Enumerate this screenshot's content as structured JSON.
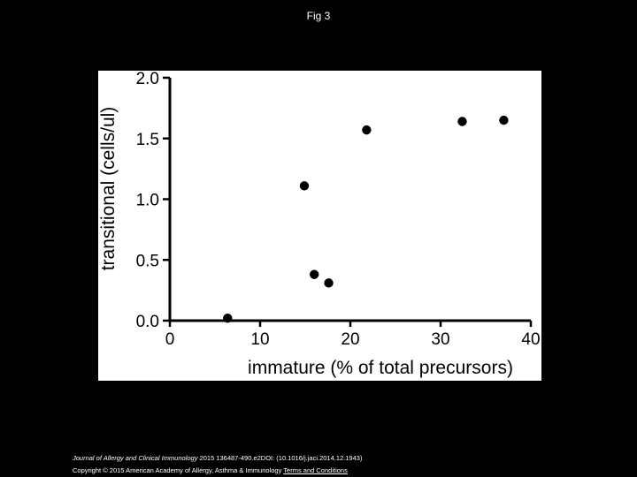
{
  "slide": {
    "title": "Fig 3"
  },
  "citation": {
    "journal": "Journal of Allergy and Clinical Immunology",
    "details": " 2015 136487-490.e2DOI: (10.1016/j.jaci.2014.12.1943)"
  },
  "copyright": {
    "text": "Copyright © 2015 American Academy of Allergy, Asthma & Immunology ",
    "link": "Terms and Conditions"
  },
  "colors": {
    "background": "#000000",
    "panel": "#ffffff",
    "ink": "#000000"
  },
  "chart_data": {
    "type": "scatter",
    "title": "",
    "xlabel": "immature (% of total precursors)",
    "ylabel": "transitional (cells/ul)",
    "xlim": [
      0,
      40
    ],
    "ylim": [
      0.0,
      2.0
    ],
    "xticks": [
      "0",
      "10",
      "20",
      "30",
      "40"
    ],
    "yticks": [
      "0.0",
      "0.5",
      "1.0",
      "1.5",
      "2.0"
    ],
    "grid": false,
    "points": [
      {
        "x": 6.4,
        "y": 0.02
      },
      {
        "x": 14.9,
        "y": 1.11
      },
      {
        "x": 16.0,
        "y": 0.38
      },
      {
        "x": 17.6,
        "y": 0.31
      },
      {
        "x": 21.8,
        "y": 1.57
      },
      {
        "x": 32.4,
        "y": 1.64
      },
      {
        "x": 37.0,
        "y": 1.65
      }
    ]
  }
}
